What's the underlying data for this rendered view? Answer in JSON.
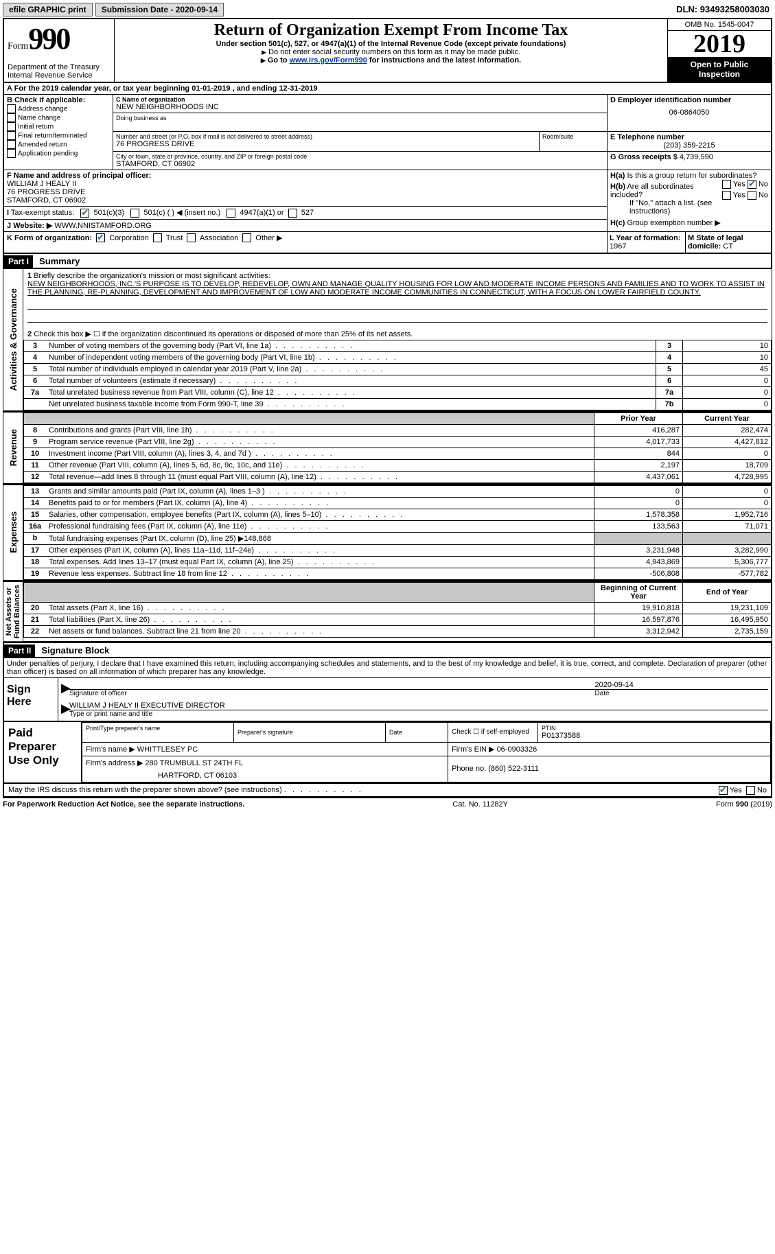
{
  "top": {
    "efile": "efile GRAPHIC print",
    "submission_label": "Submission Date - ",
    "submission_date": "2020-09-14",
    "dln_label": "DLN: ",
    "dln": "93493258003030"
  },
  "header": {
    "form_word": "Form",
    "form_num": "990",
    "dept": "Department of the Treasury\nInternal Revenue Service",
    "title": "Return of Organization Exempt From Income Tax",
    "subtitle": "Under section 501(c), 527, or 4947(a)(1) of the Internal Revenue Code (except private foundations)",
    "note1": "Do not enter social security numbers on this form as it may be made public.",
    "note2_pre": "Go to ",
    "note2_link": "www.irs.gov/Form990",
    "note2_post": " for instructions and the latest information.",
    "omb": "OMB No. 1545-0047",
    "year": "2019",
    "inspect1": "Open to Public",
    "inspect2": "Inspection"
  },
  "lineA": {
    "text_pre": "For the 2019 calendar year, or tax year beginning ",
    "begin": "01-01-2019",
    "mid": " , and ending ",
    "end": "12-31-2019"
  },
  "boxB": {
    "title": "B Check if applicable:",
    "items": [
      "Address change",
      "Name change",
      "Initial return",
      "Final return/terminated",
      "Amended return",
      "Application pending"
    ]
  },
  "boxC": {
    "name_label": "C Name of organization",
    "name": "NEW NEIGHBORHOODS INC",
    "dba_label": "Doing business as",
    "street_label": "Number and street (or P.O. box if mail is not delivered to street address)",
    "street": "76 PROGRESS DRIVE",
    "room_label": "Room/suite",
    "city_label": "City or town, state or province, country, and ZIP or foreign postal code",
    "city": "STAMFORD, CT  06902"
  },
  "boxD": {
    "label": "D Employer identification number",
    "value": "06-0864050"
  },
  "boxE": {
    "label": "E Telephone number",
    "value": "(203) 359-2215"
  },
  "boxG": {
    "label": "G Gross receipts $ ",
    "value": "4,739,590"
  },
  "boxF": {
    "label": "F Name and address of principal officer:",
    "name": "WILLIAM J HEALY II",
    "street": "76 PROGRESS DRIVE",
    "city": "STAMFORD, CT  06902"
  },
  "boxH": {
    "a_label": "Is this a group return for subordinates?",
    "a_yes": "Yes",
    "a_no": "No",
    "b_label": "Are all subordinates included?",
    "b_note": "If \"No,\" attach a list. (see instructions)",
    "c_label": "Group exemption number ▶"
  },
  "lineI": {
    "label": "Tax-exempt status:",
    "o1": "501(c)(3)",
    "o2": "501(c) (  ) ◀ (insert no.)",
    "o3": "4947(a)(1) or",
    "o4": "527"
  },
  "lineJ": {
    "label": "Website: ▶",
    "value": "WWW.NNISTAMFORD.ORG"
  },
  "lineK": {
    "label": "K Form of organization:",
    "o1": "Corporation",
    "o2": "Trust",
    "o3": "Association",
    "o4": "Other ▶"
  },
  "lineL": {
    "label": "L Year of formation: ",
    "value": "1967"
  },
  "lineM": {
    "label": "M State of legal domicile: ",
    "value": "CT"
  },
  "part1": {
    "label": "Part I",
    "title": "Summary",
    "q1_label": "Briefly describe the organization's mission or most significant activities:",
    "q1_text": "NEW NEIGHBORHOODS, INC.'S PURPOSE IS TO DEVELOP, REDEVELOP, OWN AND MANAGE QUALITY HOUSING FOR LOW AND MODERATE INCOME PERSONS AND FAMILIES AND TO WORK TO ASSIST IN THE PLANNING, RE-PLANNING, DEVELOPMENT AND IMPROVEMENT OF LOW AND MODERATE INCOME COMMUNITIES IN CONNECTICUT, WITH A FOCUS ON LOWER FAIRFIELD COUNTY.",
    "q2": "Check this box ▶ ☐ if the organization discontinued its operations or disposed of more than 25% of its net assets.",
    "rows_ag": [
      {
        "n": "3",
        "d": "Number of voting members of the governing body (Part VI, line 1a)",
        "b": "3",
        "v": "10"
      },
      {
        "n": "4",
        "d": "Number of independent voting members of the governing body (Part VI, line 1b)",
        "b": "4",
        "v": "10"
      },
      {
        "n": "5",
        "d": "Total number of individuals employed in calendar year 2019 (Part V, line 2a)",
        "b": "5",
        "v": "45"
      },
      {
        "n": "6",
        "d": "Total number of volunteers (estimate if necessary)",
        "b": "6",
        "v": "0"
      },
      {
        "n": "7a",
        "d": "Total unrelated business revenue from Part VIII, column (C), line 12",
        "b": "7a",
        "v": "0"
      },
      {
        "n": "",
        "d": "Net unrelated business taxable income from Form 990-T, line 39",
        "b": "7b",
        "v": "0"
      }
    ],
    "col_prior": "Prior Year",
    "col_current": "Current Year",
    "rows_rev": [
      {
        "n": "8",
        "d": "Contributions and grants (Part VIII, line 1h)",
        "p": "416,287",
        "c": "282,474"
      },
      {
        "n": "9",
        "d": "Program service revenue (Part VIII, line 2g)",
        "p": "4,017,733",
        "c": "4,427,812"
      },
      {
        "n": "10",
        "d": "Investment income (Part VIII, column (A), lines 3, 4, and 7d )",
        "p": "844",
        "c": "0"
      },
      {
        "n": "11",
        "d": "Other revenue (Part VIII, column (A), lines 5, 6d, 8c, 9c, 10c, and 11e)",
        "p": "2,197",
        "c": "18,709"
      },
      {
        "n": "12",
        "d": "Total revenue—add lines 8 through 11 (must equal Part VIII, column (A), line 12)",
        "p": "4,437,061",
        "c": "4,728,995"
      }
    ],
    "rows_exp": [
      {
        "n": "13",
        "d": "Grants and similar amounts paid (Part IX, column (A), lines 1–3 )",
        "p": "0",
        "c": "0"
      },
      {
        "n": "14",
        "d": "Benefits paid to or for members (Part IX, column (A), line 4)",
        "p": "0",
        "c": "0"
      },
      {
        "n": "15",
        "d": "Salaries, other compensation, employee benefits (Part IX, column (A), lines 5–10)",
        "p": "1,578,358",
        "c": "1,952,716"
      },
      {
        "n": "16a",
        "d": "Professional fundraising fees (Part IX, column (A), line 11e)",
        "p": "133,563",
        "c": "71,071"
      },
      {
        "n": "b",
        "d": "Total fundraising expenses (Part IX, column (D), line 25) ▶148,868",
        "p": "",
        "c": "",
        "shade": true
      },
      {
        "n": "17",
        "d": "Other expenses (Part IX, column (A), lines 11a–11d, 11f–24e)",
        "p": "3,231,948",
        "c": "3,282,990"
      },
      {
        "n": "18",
        "d": "Total expenses. Add lines 13–17 (must equal Part IX, column (A), line 25)",
        "p": "4,943,869",
        "c": "5,306,777"
      },
      {
        "n": "19",
        "d": "Revenue less expenses. Subtract line 18 from line 12",
        "p": "-506,808",
        "c": "-577,782"
      }
    ],
    "col_begin": "Beginning of Current Year",
    "col_end": "End of Year",
    "rows_na": [
      {
        "n": "20",
        "d": "Total assets (Part X, line 16)",
        "p": "19,910,818",
        "c": "19,231,109"
      },
      {
        "n": "21",
        "d": "Total liabilities (Part X, line 26)",
        "p": "16,597,876",
        "c": "16,495,950"
      },
      {
        "n": "22",
        "d": "Net assets or fund balances. Subtract line 21 from line 20",
        "p": "3,312,942",
        "c": "2,735,159"
      }
    ],
    "vlabels": {
      "ag": "Activities & Governance",
      "rev": "Revenue",
      "exp": "Expenses",
      "na": "Net Assets or\nFund Balances"
    }
  },
  "part2": {
    "label": "Part II",
    "title": "Signature Block",
    "declaration": "Under penalties of perjury, I declare that I have examined this return, including accompanying schedules and statements, and to the best of my knowledge and belief, it is true, correct, and complete. Declaration of preparer (other than officer) is based on all information of which preparer has any knowledge.",
    "sign_here": "Sign Here",
    "sig_officer": "Signature of officer",
    "sig_date": "Date",
    "sig_date_val": "2020-09-14",
    "sig_name": "WILLIAM J HEALY II  EXECUTIVE DIRECTOR",
    "sig_name_label": "Type or print name and title",
    "paid": "Paid Preparer Use Only",
    "prep_name_label": "Print/Type preparer's name",
    "prep_sig_label": "Preparer's signature",
    "prep_date_label": "Date",
    "prep_check": "Check ☐ if self-employed",
    "ptin_label": "PTIN",
    "ptin": "P01373588",
    "firm_name_label": "Firm's name   ▶",
    "firm_name": "WHITTLESEY PC",
    "firm_ein_label": "Firm's EIN ▶",
    "firm_ein": "06-0903326",
    "firm_addr_label": "Firm's address ▶",
    "firm_addr1": "280 TRUMBULL ST 24TH FL",
    "firm_addr2": "HARTFORD, CT  06103",
    "phone_label": "Phone no.",
    "phone": "(860) 522-3111",
    "discuss": "May the IRS discuss this return with the preparer shown above? (see instructions)",
    "discuss_yes": "Yes",
    "discuss_no": "No"
  },
  "footer": {
    "left": "For Paperwork Reduction Act Notice, see the separate instructions.",
    "mid": "Cat. No. 11282Y",
    "right": "Form 990 (2019)"
  }
}
